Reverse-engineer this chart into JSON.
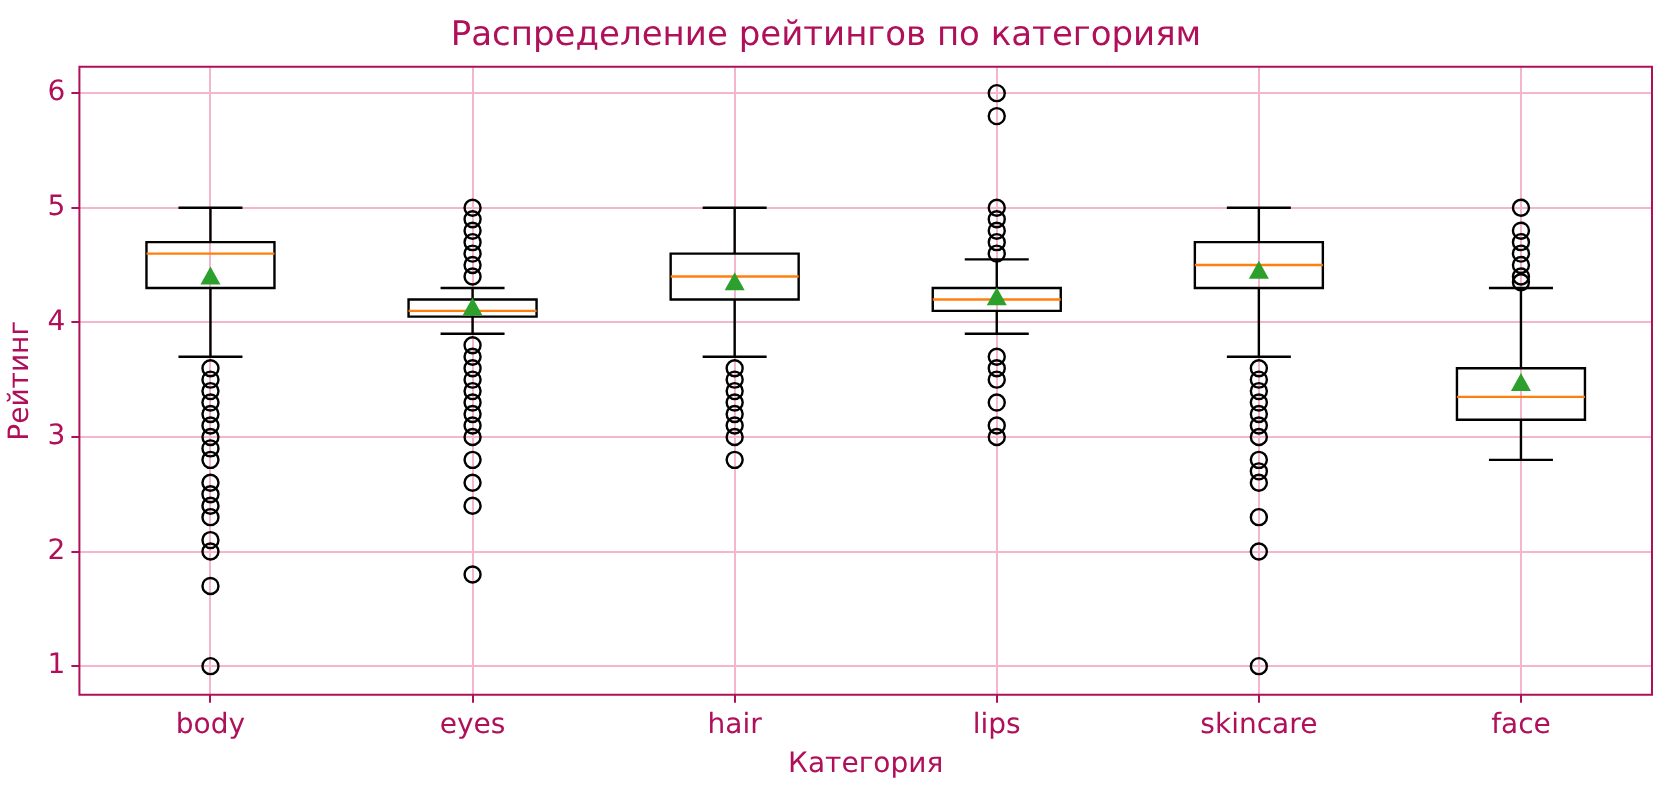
{
  "chart_data": {
    "type": "box",
    "title": "Распределение рейтингов по категориям",
    "xlabel": "Категория",
    "ylabel": "Рейтинг",
    "categories": [
      "body",
      "eyes",
      "hair",
      "lips",
      "skincare",
      "face"
    ],
    "boxes": [
      {
        "low": 3.7,
        "q1": 4.3,
        "median": 4.6,
        "q3": 4.7,
        "high": 5.0,
        "mean": 4.4,
        "outliers": [
          3.6,
          3.5,
          3.4,
          3.3,
          3.2,
          3.1,
          3.0,
          2.9,
          2.8,
          2.6,
          2.5,
          2.4,
          2.3,
          2.1,
          2.0,
          1.7,
          1.0
        ]
      },
      {
        "low": 3.9,
        "q1": 4.05,
        "median": 4.1,
        "q3": 4.2,
        "high": 4.3,
        "mean": 4.13,
        "outliers": [
          4.4,
          4.5,
          4.6,
          4.7,
          4.8,
          4.9,
          5.0,
          3.8,
          3.7,
          3.6,
          3.5,
          3.4,
          3.3,
          3.2,
          3.1,
          3.0,
          2.8,
          2.6,
          2.4,
          1.8
        ]
      },
      {
        "low": 3.7,
        "q1": 4.2,
        "median": 4.4,
        "q3": 4.6,
        "high": 5.0,
        "mean": 4.35,
        "outliers": [
          3.6,
          3.5,
          3.4,
          3.3,
          3.2,
          3.1,
          3.0,
          2.8
        ]
      },
      {
        "low": 3.9,
        "q1": 4.1,
        "median": 4.2,
        "q3": 4.3,
        "high": 4.55,
        "mean": 4.22,
        "outliers": [
          4.6,
          4.7,
          4.8,
          4.9,
          5.0,
          5.8,
          6.0,
          3.7,
          3.6,
          3.5,
          3.3,
          3.1,
          3.0
        ]
      },
      {
        "low": 3.7,
        "q1": 4.3,
        "median": 4.5,
        "q3": 4.7,
        "high": 5.0,
        "mean": 4.45,
        "outliers": [
          3.6,
          3.5,
          3.4,
          3.3,
          3.2,
          3.1,
          3.0,
          2.8,
          2.7,
          2.6,
          2.3,
          2.0,
          1.0
        ]
      },
      {
        "low": 2.8,
        "q1": 3.15,
        "median": 3.35,
        "q3": 3.6,
        "high": 4.3,
        "mean": 3.47,
        "outliers": [
          4.35,
          4.4,
          4.5,
          4.6,
          4.7,
          4.8,
          5.0
        ]
      }
    ],
    "ylim": [
      0.75,
      6.23
    ],
    "yticks": [
      1,
      2,
      3,
      4,
      5,
      6
    ],
    "grid": true
  }
}
